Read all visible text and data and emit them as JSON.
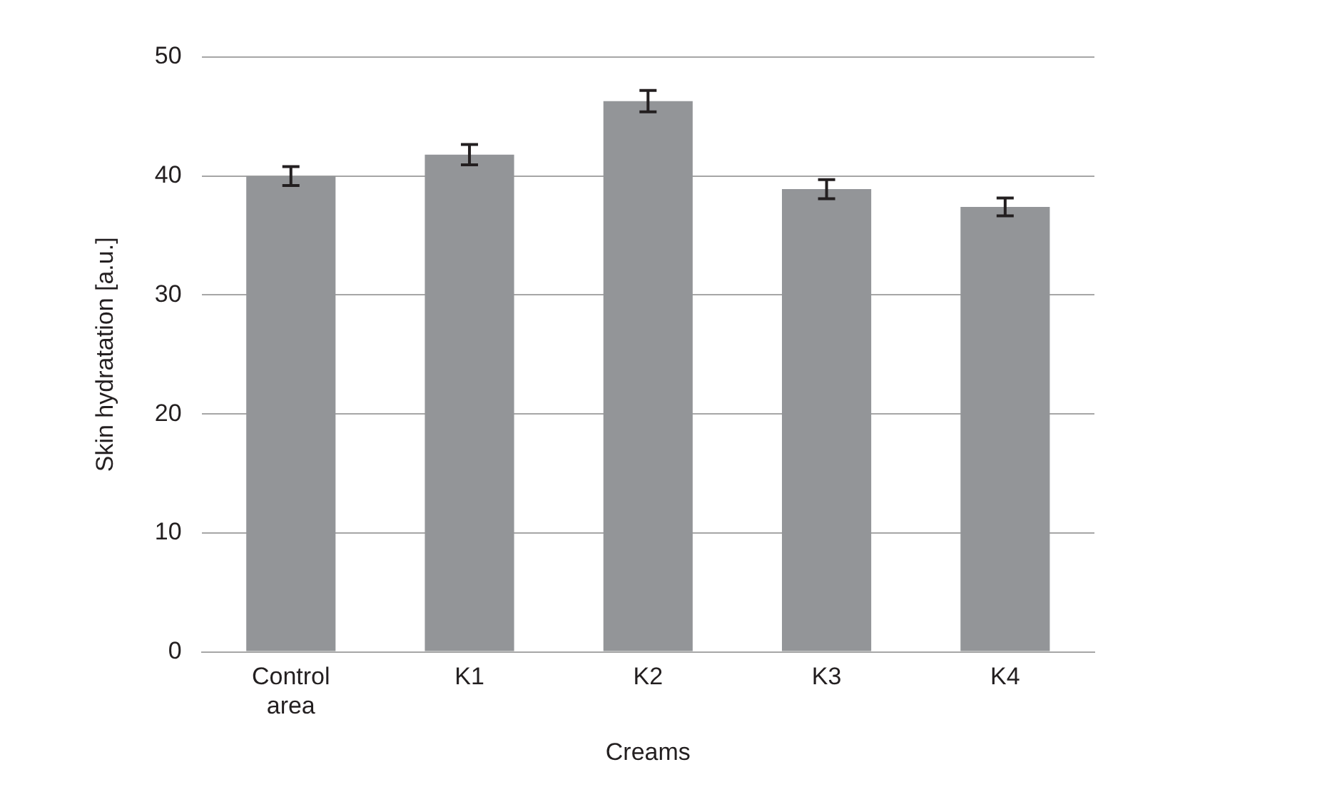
{
  "chart_data": {
    "type": "bar",
    "xlabel": "Creams",
    "ylabel": "Skin hydratation [a.u.]",
    "categories": [
      [
        "Control",
        "area"
      ],
      "K1",
      "K2",
      "K3",
      "K4"
    ],
    "values": [
      40.0,
      41.8,
      46.3,
      38.9,
      37.4
    ],
    "errors": [
      0.8,
      0.85,
      0.9,
      0.8,
      0.75
    ],
    "color": "#939598",
    "ylim": [
      0,
      50
    ],
    "yticks": [
      0,
      10,
      20,
      30,
      40,
      50
    ],
    "grid": "y"
  }
}
